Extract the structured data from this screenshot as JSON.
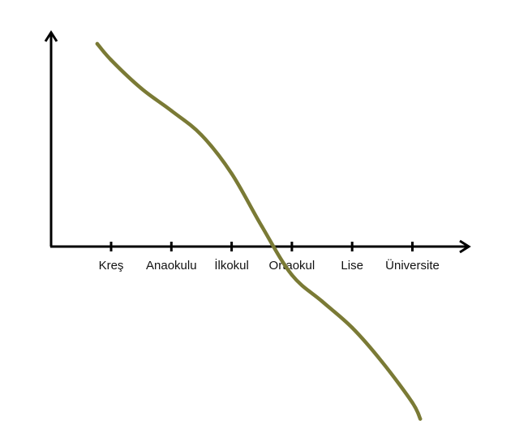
{
  "chart_data": {
    "type": "line",
    "title": "",
    "xlabel": "",
    "ylabel": "",
    "categories": [
      "Kreş",
      "Anaokulu",
      "İlkokul",
      "Ortaokul",
      "Lise",
      "Üniversite"
    ],
    "series": [
      {
        "x": [
          -0.23,
          0.0,
          0.5,
          1.0,
          1.5,
          2.0,
          2.5,
          3.0,
          3.5,
          4.0,
          4.5,
          5.0,
          5.13
        ],
        "values": [
          1.0,
          0.92,
          0.78,
          0.67,
          0.55,
          0.36,
          0.1,
          -0.14,
          -0.27,
          -0.4,
          -0.57,
          -0.77,
          -0.85
        ]
      }
    ],
    "xlim": [
      -1.0,
      5.9
    ],
    "ylim": [
      -1.0,
      1.1
    ],
    "grid": false,
    "legend": "none",
    "colors": {
      "line": "#7a7a35",
      "axis": "#000000"
    }
  }
}
